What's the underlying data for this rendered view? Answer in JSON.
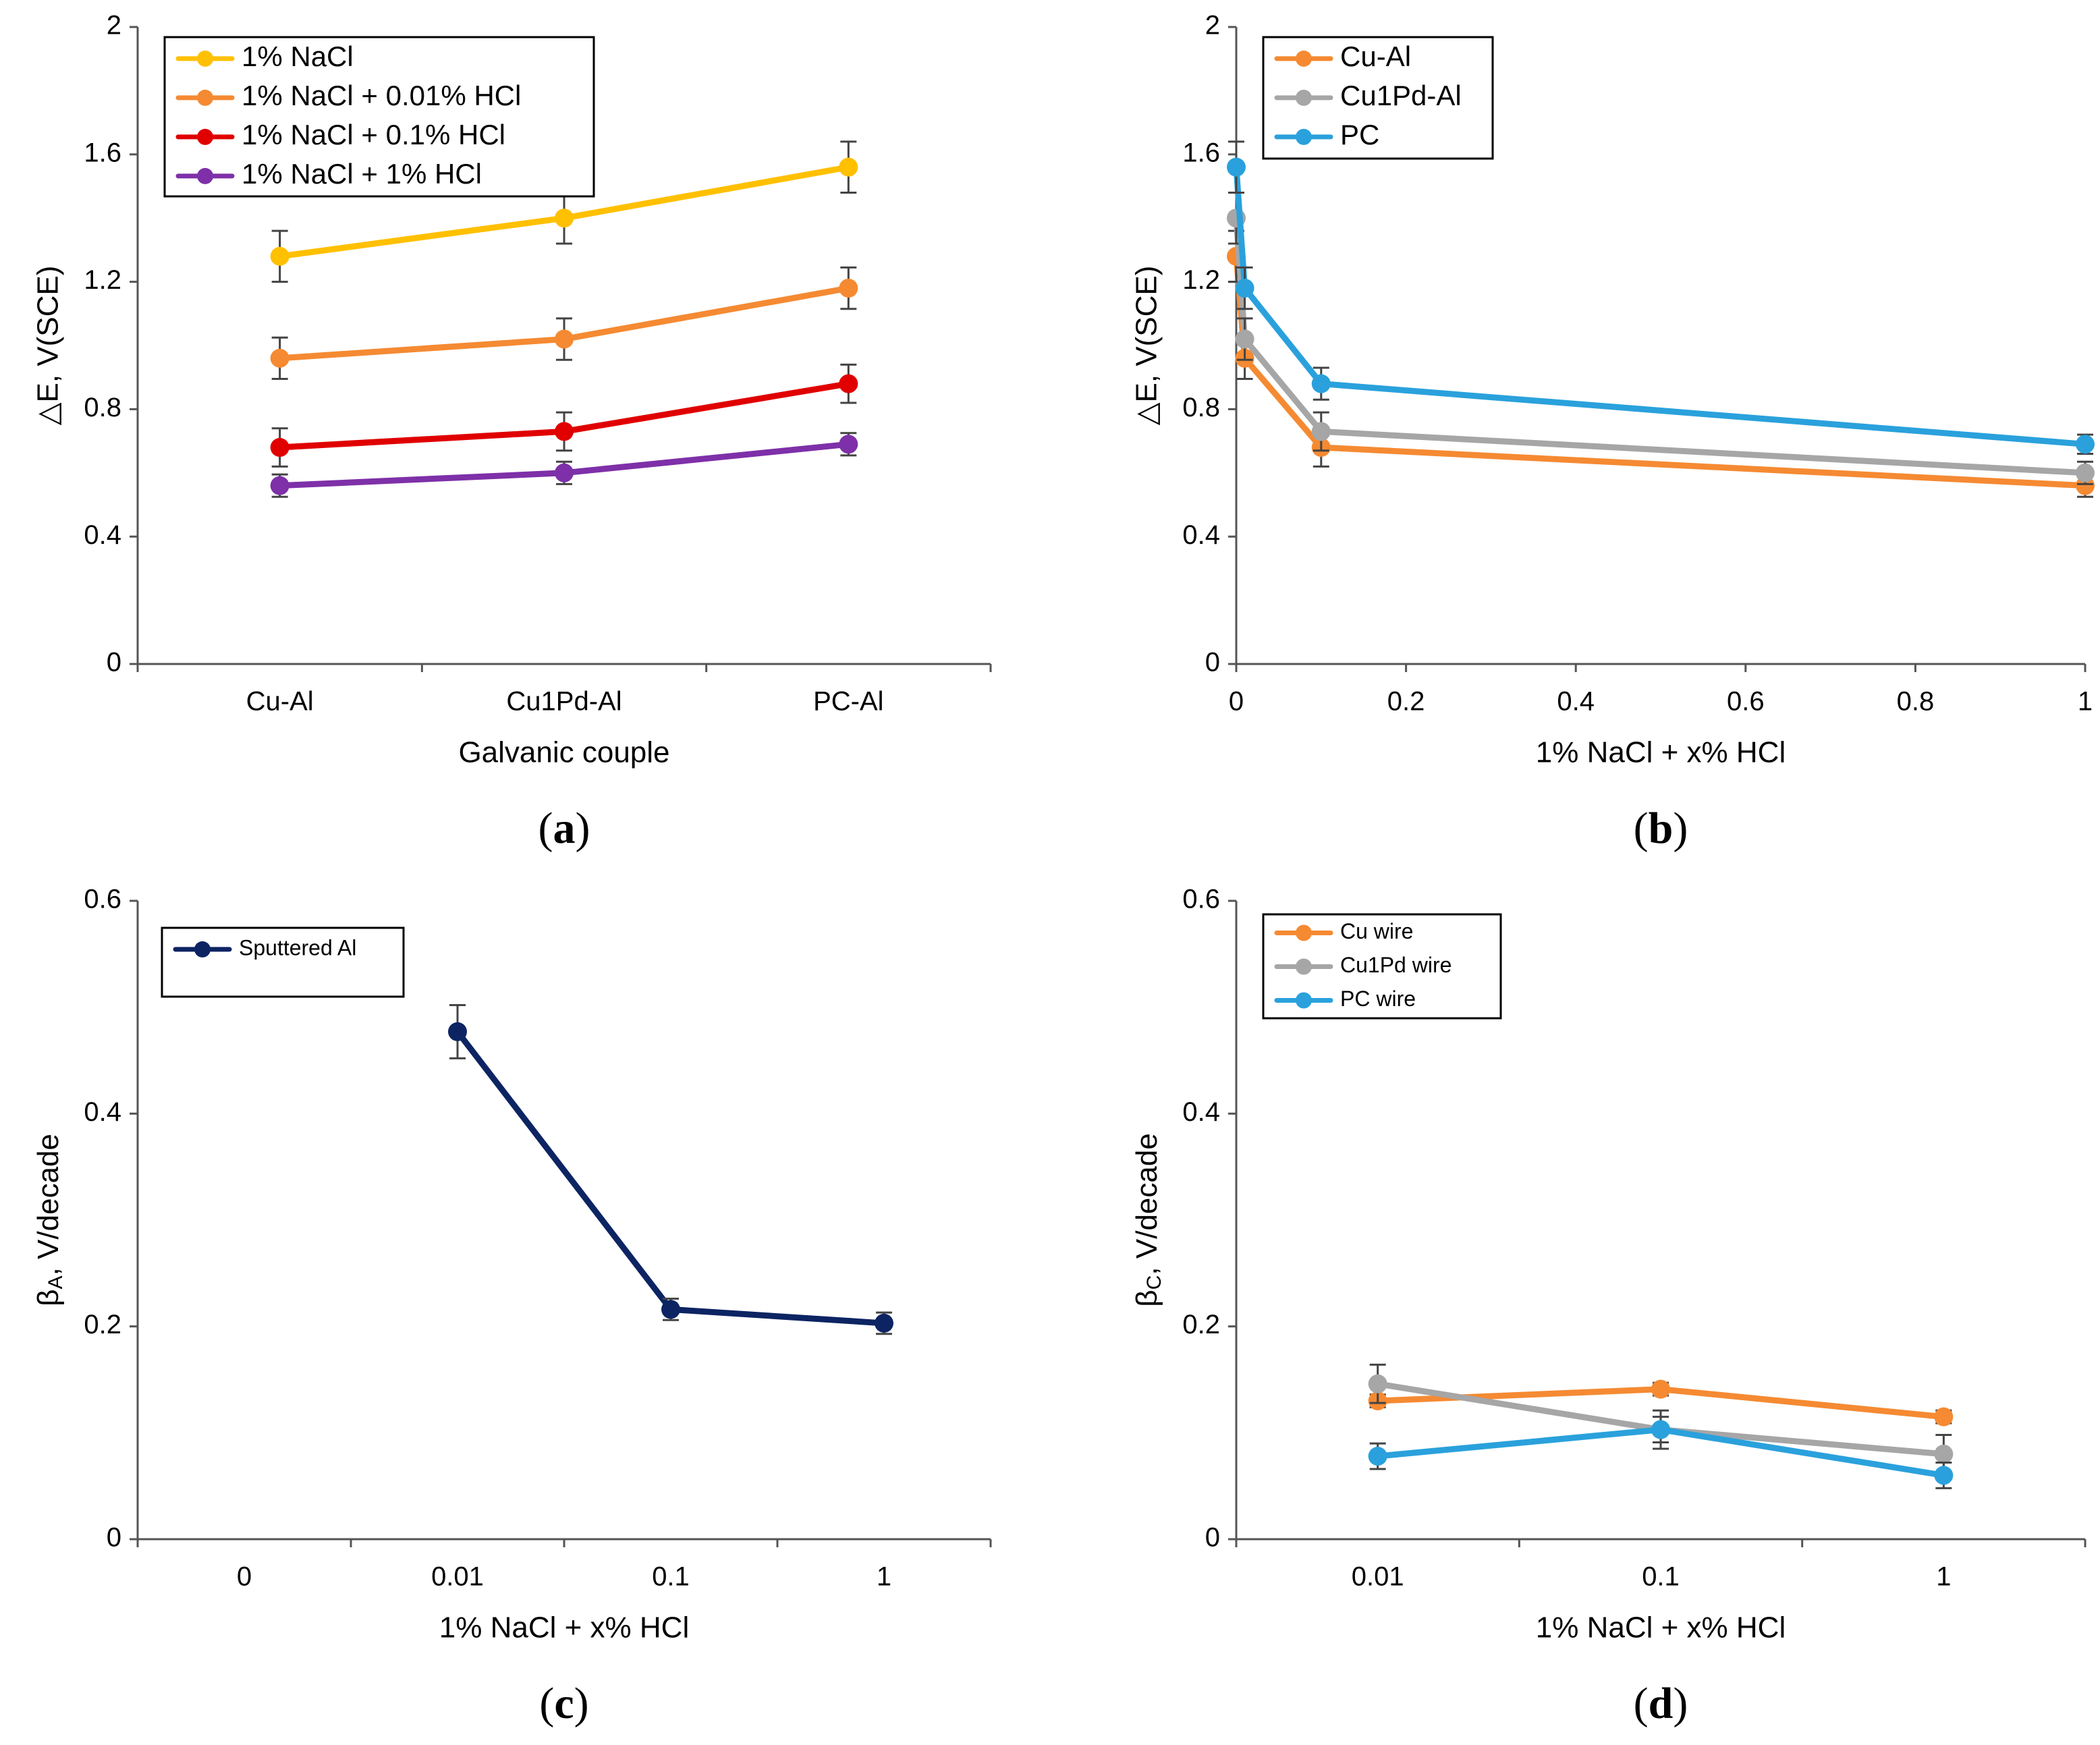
{
  "chart_data": [
    {
      "id": "a",
      "panel_label": "a",
      "type": "line",
      "categories": [
        "Cu-Al",
        "Cu1Pd-Al",
        "PC-Al"
      ],
      "xlabel": "Galvanic couple",
      "ylabel": "△E, V(SCE)",
      "ylim": [
        0,
        2
      ],
      "yticks": [
        "0",
        "0.4",
        "0.8",
        "1.2",
        "1.6",
        "2"
      ],
      "legend_position": "top-left",
      "series": [
        {
          "name": "1% NaCl",
          "color": "#FFC000",
          "values": [
            1.28,
            1.4,
            1.56
          ],
          "err": [
            0.08,
            0.08,
            0.08
          ]
        },
        {
          "name": "1% NaCl + 0.01% HCl",
          "color": "#F58A32",
          "values": [
            0.96,
            1.02,
            1.18
          ],
          "err": [
            0.065,
            0.065,
            0.065
          ]
        },
        {
          "name": "1% NaCl + 0.1% HCl",
          "color": "#E00000",
          "values": [
            0.68,
            0.73,
            0.88
          ],
          "err": [
            0.06,
            0.06,
            0.06
          ]
        },
        {
          "name": "1% NaCl + 1% HCl",
          "color": "#7E30A8",
          "values": [
            0.56,
            0.6,
            0.69
          ],
          "err": [
            0.035,
            0.035,
            0.035
          ]
        }
      ]
    },
    {
      "id": "b",
      "panel_label": "b",
      "type": "line",
      "x": [
        0,
        0.01,
        0.1,
        1
      ],
      "xlim": [
        0,
        1
      ],
      "xticks": [
        "0",
        "0.2",
        "0.4",
        "0.6",
        "0.8",
        "1"
      ],
      "xlabel": "1% NaCl + x% HCl",
      "ylabel": "△E, V(SCE)",
      "ylim": [
        0,
        2
      ],
      "yticks": [
        "0",
        "0.4",
        "0.8",
        "1.2",
        "1.6",
        "2"
      ],
      "legend_position": "top-left",
      "series": [
        {
          "name": "Cu-Al",
          "color": "#F58A32",
          "values": [
            1.28,
            0.96,
            0.68,
            0.56
          ],
          "err": [
            0.08,
            0.065,
            0.06,
            0.035
          ]
        },
        {
          "name": "Cu1Pd-Al",
          "color": "#A6A6A6",
          "values": [
            1.4,
            1.02,
            0.73,
            0.6
          ],
          "err": [
            0.08,
            0.065,
            0.06,
            0.035
          ]
        },
        {
          "name": "PC",
          "color": "#2AA1DC",
          "values": [
            1.56,
            1.18,
            0.88,
            0.69
          ],
          "err": [
            0.08,
            0.065,
            0.05,
            0.03
          ]
        }
      ]
    },
    {
      "id": "c",
      "panel_label": "c",
      "type": "line",
      "categories": [
        "0",
        "0.01",
        "0.1",
        "1"
      ],
      "xlabel": "1% NaCl + x% HCl",
      "ylabel_main": "β",
      "ylabel_sub": "A",
      "ylabel_rest": ", V/decade",
      "ylim": [
        0,
        0.6
      ],
      "yticks": [
        "0",
        "0.2",
        "0.4",
        "0.6"
      ],
      "legend_position": "top-left",
      "series": [
        {
          "name": "Sputtered Al",
          "color": "#0D2463",
          "values": [
            null,
            0.477,
            0.216,
            0.203
          ],
          "err": [
            null,
            0.025,
            0.01,
            0.01
          ]
        }
      ]
    },
    {
      "id": "d",
      "panel_label": "d",
      "type": "line",
      "categories": [
        "0.01",
        "0.1",
        "1"
      ],
      "xlabel": "1% NaCl + x% HCl",
      "ylabel_main": "β",
      "ylabel_sub": "C",
      "ylabel_rest": ", V/decade",
      "ylim": [
        0,
        0.6
      ],
      "yticks": [
        "0",
        "0.2",
        "0.4",
        "0.6"
      ],
      "legend_position": "top-left",
      "series": [
        {
          "name": "Cu wire",
          "color": "#F58A32",
          "values": [
            0.13,
            0.141,
            0.115
          ],
          "err": [
            0.006,
            0.006,
            0.006
          ]
        },
        {
          "name": "Cu1Pd wire",
          "color": "#A6A6A6",
          "values": [
            0.146,
            0.103,
            0.08
          ],
          "err": [
            0.018,
            0.018,
            0.018
          ]
        },
        {
          "name": "PC wire",
          "color": "#2AA1DC",
          "values": [
            0.078,
            0.103,
            0.06
          ],
          "err": [
            0.012,
            0.012,
            0.012
          ]
        }
      ]
    }
  ]
}
